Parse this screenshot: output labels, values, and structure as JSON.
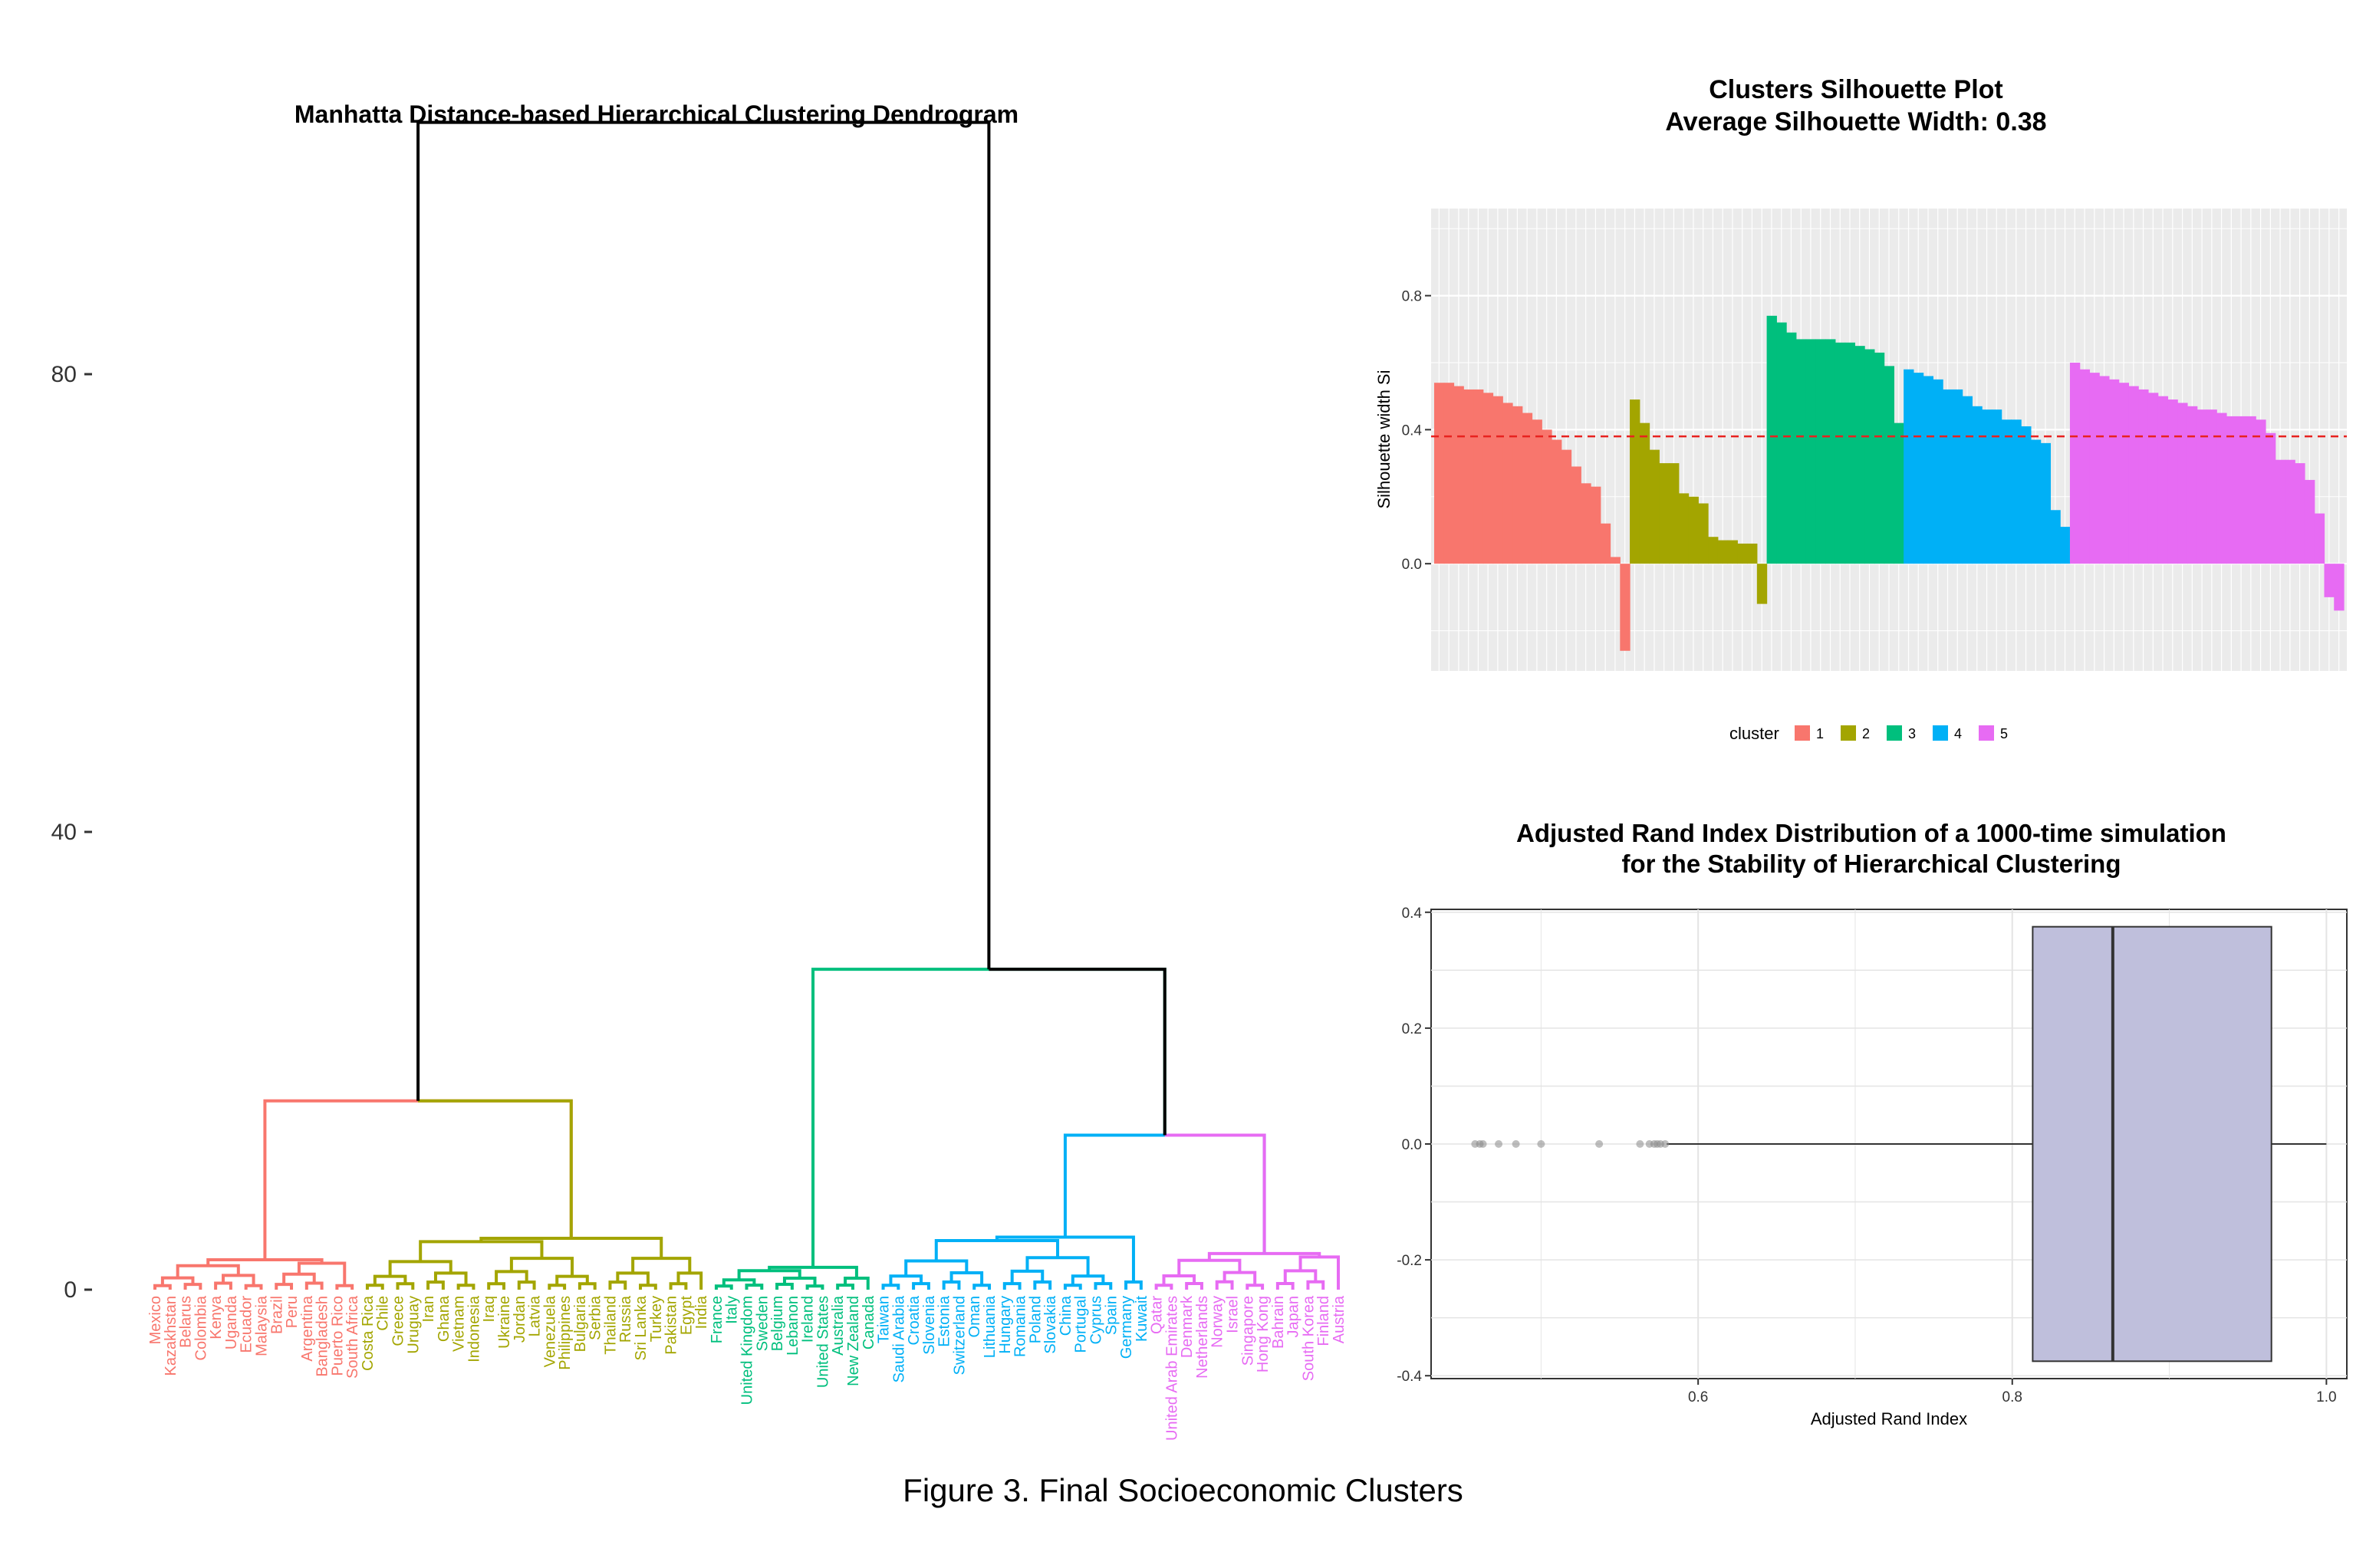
{
  "figure_caption": "Figure 3. Final Socioeconomic Clusters",
  "colors": {
    "c1": "#F8766D",
    "c2": "#A3A500",
    "c3": "#00BF7D",
    "c4": "#00B0F6",
    "c5": "#E76BF3",
    "root": "#000000",
    "avg_line": "#E8221F",
    "box_fill": "#BFBFDC",
    "panel_bg": "#EBEBEB"
  },
  "chart_data": [
    {
      "type": "dendrogram",
      "title": "Manhatta Distance-based Hierarchical Clustering Dendrogram",
      "y_ticks": [
        0,
        40,
        80
      ],
      "y_tick_labels": [
        "0",
        "40",
        "80"
      ],
      "ylim": [
        0,
        102
      ],
      "root_height": 102,
      "clusters": [
        {
          "id": 1,
          "color_key": "c1",
          "leaves": [
            "Mexico",
            "Kazakhstan",
            "Belarus",
            "Colombia",
            "Kenya",
            "Uganda",
            "Ecuador",
            "Malaysia",
            "Brazil",
            "Peru",
            "Argentina",
            "Bangladesh",
            "Puerto Rico",
            "South Africa"
          ]
        },
        {
          "id": 2,
          "color_key": "c2",
          "leaves": [
            "Costa Rica",
            "Chile",
            "Greece",
            "Uruguay",
            "Iran",
            "Ghana",
            "Vietnam",
            "Indonesia",
            "Iraq",
            "Ukraine",
            "Jordan",
            "Latvia",
            "Venezuela",
            "Philippines",
            "Bulgaria",
            "Serbia",
            "Thailand",
            "Russia",
            "Sri Lanka",
            "Turkey",
            "Pakistan",
            "Egypt",
            "India"
          ]
        },
        {
          "id": 3,
          "color_key": "c3",
          "leaves": [
            "France",
            "Italy",
            "United Kingdom",
            "Sweden",
            "Belgium",
            "Lebanon",
            "Ireland",
            "United States",
            "Australia",
            "New Zealand",
            "Canada"
          ]
        },
        {
          "id": 4,
          "color_key": "c4",
          "leaves": [
            "Taiwan",
            "Saudi Arabia",
            "Croatia",
            "Slovenia",
            "Estonia",
            "Switzerland",
            "Oman",
            "Lithuania",
            "Hungary",
            "Romania",
            "Poland",
            "Slovakia",
            "China",
            "Portugal",
            "Cyprus",
            "Spain",
            "Germany",
            "Kuwait"
          ]
        },
        {
          "id": 5,
          "color_key": "c5",
          "leaves": [
            "Qatar",
            "United Arab Emirates",
            "Denmark",
            "Netherlands",
            "Norway",
            "Israel",
            "Singapore",
            "Hong Kong",
            "Bahrain",
            "Japan",
            "South Korea",
            "Finland",
            "Austria"
          ]
        }
      ],
      "merge_heights": {
        "c1_c2": 16.5,
        "c3_c45": 28,
        "c4_c5": 13.5,
        "root": 102,
        "c1_top": 5.2,
        "c2_top": 6.6,
        "c3_top": 3.5,
        "c4_top": 6.8,
        "c5_top": 7.0
      }
    },
    {
      "type": "bar",
      "title": "Clusters Silhouette Plot\nAverage Silhouette Width: 0.38",
      "ylabel": "Silhouette width Si",
      "xlabel": "",
      "ylim": [
        -0.32,
        1.06
      ],
      "y_ticks": [
        0.0,
        0.4,
        0.8
      ],
      "y_tick_labels": [
        "0.0",
        "0.4",
        "0.8"
      ],
      "average_silhouette": 0.38,
      "legend": {
        "title": "cluster",
        "labels": [
          "1",
          "2",
          "3",
          "4",
          "5"
        ],
        "position": "bottom"
      },
      "series": [
        {
          "name": "1",
          "color_key": "c1",
          "values": [
            0.54,
            0.54,
            0.53,
            0.52,
            0.52,
            0.51,
            0.5,
            0.48,
            0.47,
            0.45,
            0.43,
            0.4,
            0.37,
            0.34,
            0.29,
            0.24,
            0.23,
            0.12,
            0.02,
            -0.26
          ]
        },
        {
          "name": "2",
          "color_key": "c2",
          "values": [
            0.49,
            0.42,
            0.34,
            0.3,
            0.3,
            0.21,
            0.2,
            0.18,
            0.08,
            0.07,
            0.07,
            0.06,
            0.06,
            -0.12
          ]
        },
        {
          "name": "3",
          "color_key": "c3",
          "values": [
            0.74,
            0.72,
            0.69,
            0.67,
            0.67,
            0.67,
            0.67,
            0.66,
            0.66,
            0.65,
            0.64,
            0.63,
            0.59,
            0.42
          ]
        },
        {
          "name": "4",
          "color_key": "c4",
          "values": [
            0.58,
            0.57,
            0.56,
            0.55,
            0.52,
            0.52,
            0.5,
            0.47,
            0.46,
            0.46,
            0.43,
            0.43,
            0.41,
            0.37,
            0.36,
            0.16,
            0.11
          ]
        },
        {
          "name": "5",
          "color_key": "c5",
          "values": [
            0.6,
            0.58,
            0.57,
            0.56,
            0.55,
            0.54,
            0.53,
            0.52,
            0.51,
            0.5,
            0.49,
            0.48,
            0.47,
            0.46,
            0.46,
            0.45,
            0.44,
            0.44,
            0.44,
            0.43,
            0.39,
            0.31,
            0.31,
            0.3,
            0.25,
            0.15,
            -0.1,
            -0.14
          ]
        }
      ]
    },
    {
      "type": "boxplot",
      "title": "Adjusted Rand Index Distribution of a 1000-time simulation\nfor the Stability of Hierarchical Clustering",
      "xlabel": "Adjusted Rand Index",
      "ylabel": "",
      "xlim": [
        0.43,
        1.013
      ],
      "ylim": [
        -0.405,
        0.405
      ],
      "x_ticks": [
        0.6,
        0.8,
        1.0
      ],
      "x_tick_labels": [
        "0.6",
        "0.8",
        "1.0"
      ],
      "y_ticks": [
        -0.4,
        -0.2,
        0.0,
        0.2,
        0.4
      ],
      "y_tick_labels": [
        "-0.4",
        "-0.2",
        "0.0",
        "0.2",
        "0.4"
      ],
      "box": {
        "q1": 0.813,
        "median": 0.864,
        "q3": 0.965,
        "whisker_low": 0.58,
        "whisker_high": 1.0,
        "box_ymin": -0.375,
        "box_ymax": 0.375
      },
      "outliers": [
        0.458,
        0.461,
        0.463,
        0.473,
        0.484,
        0.5,
        0.537,
        0.563,
        0.569,
        0.572,
        0.574,
        0.576,
        0.579
      ]
    }
  ]
}
